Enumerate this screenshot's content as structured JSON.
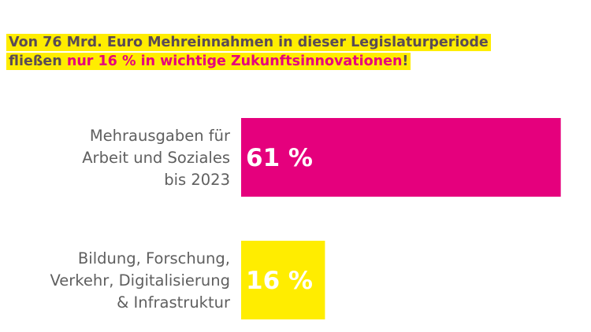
{
  "headline": {
    "line1": "Von 76 Mrd. Euro Mehreinnahmen in dieser Legislaturperiode",
    "line2_prefix": "fließen ",
    "line2_highlight": "nur 16 % in wichtige Zukunftsinnovationen",
    "line2_suffix": "!"
  },
  "colors": {
    "magenta": "#e5007d",
    "yellow": "#ffed00",
    "label_gray": "#5f5f5f"
  },
  "chart_data": {
    "type": "bar",
    "orientation": "horizontal",
    "title": "Von 76 Mrd. Euro Mehreinnahmen in dieser Legislaturperiode fließen nur 16 % in wichtige Zukunftsinnovationen!",
    "xlabel": "",
    "ylabel": "",
    "xlim": [
      0,
      100
    ],
    "grid": false,
    "categories": [
      [
        "Mehrausgaben für",
        "Arbeit und Soziales",
        "bis 2023"
      ],
      [
        "Bildung, Forschung,",
        "Verkehr, Digitalisierung",
        "& Infrastruktur"
      ]
    ],
    "values": [
      61,
      16
    ],
    "value_labels": [
      "61 %",
      "16 %"
    ],
    "bar_colors": [
      "#e5007d",
      "#ffed00"
    ]
  }
}
